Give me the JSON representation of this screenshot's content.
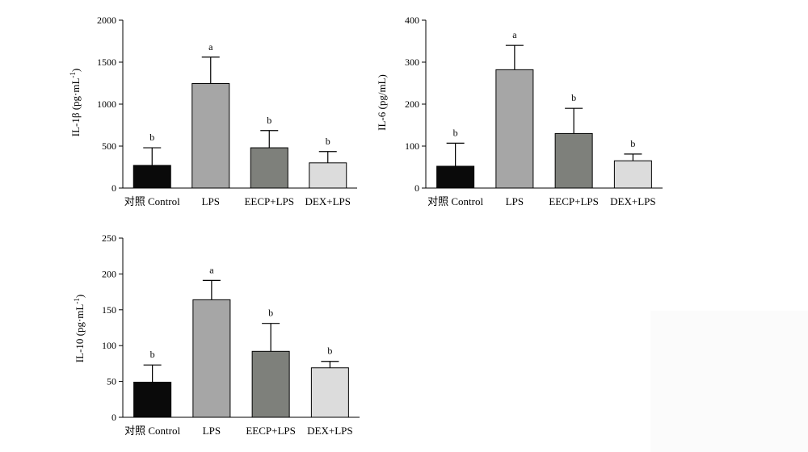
{
  "chart_data": [
    {
      "type": "bar",
      "ylabel": "IL-1β (pg·mL-1)",
      "ylabel_main": "IL-1β (pg·mL",
      "ylabel_sup": "-1",
      "ylabel_end": ")",
      "ylim": [
        0,
        2000
      ],
      "yticks": [
        "0",
        "500",
        "1000",
        "1500",
        "2000"
      ],
      "categories": [
        "对照 Control",
        "LPS",
        "EECP+LPS",
        "DEX+LPS"
      ],
      "values": [
        270,
        1245,
        480,
        300
      ],
      "errors": [
        210,
        315,
        205,
        135
      ],
      "significance": [
        "b",
        "a",
        "b",
        "b"
      ],
      "colors": [
        "#0a0a0a",
        "#a6a6a6",
        "#7e807b",
        "#dcdcdc"
      ],
      "grid": false
    },
    {
      "type": "bar",
      "ylabel": "IL-6 (pg/mL)",
      "ylim": [
        0,
        400
      ],
      "yticks": [
        "0",
        "100",
        "200",
        "300",
        "400"
      ],
      "categories": [
        "对照 Control",
        "LPS",
        "EECP+LPS",
        "DEX+LPS"
      ],
      "values": [
        52,
        282,
        130,
        65
      ],
      "errors": [
        55,
        58,
        60,
        16
      ],
      "significance": [
        "b",
        "a",
        "b",
        "b"
      ],
      "colors": [
        "#0a0a0a",
        "#a6a6a6",
        "#7e807b",
        "#dcdcdc"
      ],
      "grid": false
    },
    {
      "type": "bar",
      "ylabel": "IL-10 (pg·mL-1)",
      "ylabel_main": "IL-10 (pg·mL",
      "ylabel_sup": "-1",
      "ylabel_end": ")",
      "ylim": [
        0,
        250
      ],
      "yticks": [
        "0",
        "50",
        "100",
        "150",
        "200",
        "250"
      ],
      "categories": [
        "对照 Control",
        "LPS",
        "EECP+LPS",
        "DEX+LPS"
      ],
      "values": [
        49,
        164,
        92,
        69
      ],
      "errors": [
        24,
        27,
        39,
        9
      ],
      "significance": [
        "b",
        "a",
        "b",
        "b"
      ],
      "colors": [
        "#0a0a0a",
        "#a6a6a6",
        "#7e807b",
        "#dcdcdc"
      ],
      "grid": false
    }
  ]
}
